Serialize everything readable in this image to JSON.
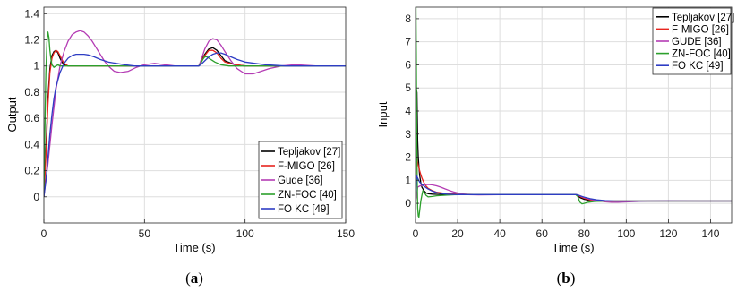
{
  "chart_data": [
    {
      "type": "line",
      "panel_label": "a",
      "xlabel": "Time (s)",
      "ylabel": "Output",
      "xlim": [
        0,
        150
      ],
      "ylim": [
        -0.2,
        1.45
      ],
      "xticks": [
        0,
        50,
        100,
        150
      ],
      "yticks": [
        0,
        0.2,
        0.4,
        0.6,
        0.8,
        1,
        1.2,
        1.4
      ],
      "grid": true,
      "legend_position": "bottom-right",
      "series": [
        {
          "name": "Tepljakov [27]",
          "color": "#000000",
          "x": [
            0,
            1,
            2,
            3,
            4,
            5,
            6,
            7,
            8,
            9,
            10,
            12,
            15,
            20,
            30,
            50,
            77,
            78,
            80,
            82,
            84,
            86,
            88,
            90,
            95,
            100,
            120,
            150
          ],
          "y": [
            0,
            0.35,
            0.75,
            0.98,
            1.08,
            1.11,
            1.12,
            1.1,
            1.06,
            1.03,
            1.01,
            1.0,
            1.0,
            1.0,
            1.0,
            1.0,
            1.0,
            1.03,
            1.09,
            1.13,
            1.14,
            1.12,
            1.08,
            1.04,
            1.01,
            1.0,
            1.0,
            1.0
          ]
        },
        {
          "name": "F-MIGO [26]",
          "color": "#e8251e",
          "x": [
            0,
            1,
            2,
            3,
            4,
            5,
            6,
            7,
            8,
            9,
            10,
            12,
            15,
            20,
            30,
            50,
            77,
            78,
            80,
            82,
            84,
            86,
            88,
            90,
            95,
            100,
            120,
            150
          ],
          "y": [
            0,
            0.3,
            0.7,
            0.95,
            1.06,
            1.1,
            1.12,
            1.11,
            1.08,
            1.05,
            1.02,
            1.0,
            1.0,
            1.0,
            1.0,
            1.0,
            1.0,
            1.03,
            1.08,
            1.12,
            1.12,
            1.1,
            1.06,
            1.03,
            1.01,
            1.0,
            1.0,
            1.0
          ]
        },
        {
          "name": "Gude [36]",
          "color": "#b43cb4",
          "x": [
            0,
            2,
            4,
            6,
            8,
            10,
            12,
            14,
            16,
            18,
            20,
            22,
            24,
            26,
            28,
            30,
            32,
            35,
            38,
            42,
            46,
            50,
            55,
            60,
            65,
            70,
            77,
            78,
            80,
            82,
            84,
            86,
            88,
            90,
            93,
            96,
            100,
            104,
            108,
            112,
            118,
            125,
            135,
            150
          ],
          "y": [
            0,
            0.25,
            0.55,
            0.82,
            1.0,
            1.11,
            1.19,
            1.24,
            1.26,
            1.27,
            1.26,
            1.23,
            1.19,
            1.14,
            1.09,
            1.04,
            1.0,
            0.96,
            0.95,
            0.96,
            0.99,
            1.01,
            1.02,
            1.01,
            1.0,
            1.0,
            1.0,
            1.04,
            1.13,
            1.19,
            1.21,
            1.2,
            1.16,
            1.11,
            1.04,
            0.98,
            0.94,
            0.94,
            0.96,
            0.98,
            1.0,
            1.01,
            1.0,
            1.0
          ]
        },
        {
          "name": "ZN-FOC [40]",
          "color": "#2ca02c",
          "x": [
            0,
            0.5,
            1,
            1.5,
            2,
            2.5,
            3,
            3.5,
            4,
            5,
            6,
            7,
            8,
            10,
            15,
            20,
            30,
            50,
            77,
            78,
            79,
            80,
            81,
            83,
            85,
            88,
            92,
            100,
            120,
            150
          ],
          "y": [
            0,
            0.5,
            0.95,
            1.18,
            1.26,
            1.22,
            1.12,
            1.05,
            1.01,
            0.99,
            1.0,
            1.01,
            1.0,
            1.0,
            1.0,
            1.0,
            1.0,
            1.0,
            1.0,
            1.02,
            1.05,
            1.07,
            1.07,
            1.05,
            1.03,
            1.01,
            1.0,
            1.0,
            1.0,
            1.0
          ]
        },
        {
          "name": "FO KC [49]",
          "color": "#2e3dc4",
          "x": [
            0,
            1,
            2,
            3,
            4,
            5,
            6,
            8,
            10,
            12,
            14,
            16,
            18,
            20,
            22,
            25,
            28,
            32,
            36,
            40,
            45,
            50,
            55,
            60,
            65,
            70,
            77,
            78,
            80,
            82,
            84,
            86,
            88,
            90,
            93,
            96,
            100,
            105,
            110,
            120,
            135,
            150
          ],
          "y": [
            0,
            0.12,
            0.3,
            0.48,
            0.63,
            0.75,
            0.84,
            0.95,
            1.02,
            1.06,
            1.08,
            1.09,
            1.09,
            1.09,
            1.085,
            1.07,
            1.05,
            1.03,
            1.02,
            1.01,
            1.0,
            1.0,
            1.0,
            1.0,
            1.0,
            1.0,
            1.0,
            1.01,
            1.04,
            1.07,
            1.09,
            1.1,
            1.1,
            1.09,
            1.07,
            1.05,
            1.03,
            1.02,
            1.01,
            1.0,
            1.0,
            1.0
          ]
        }
      ]
    },
    {
      "type": "line",
      "panel_label": "b",
      "xlabel": "Time (s)",
      "ylabel": "Input",
      "xlim": [
        0,
        150
      ],
      "ylim": [
        -0.85,
        8.5
      ],
      "xticks": [
        0,
        20,
        40,
        60,
        80,
        100,
        120,
        140
      ],
      "yticks": [
        0,
        1,
        2,
        3,
        4,
        5,
        6,
        7,
        8
      ],
      "grid": true,
      "legend_position": "top-right",
      "series": [
        {
          "name": "Tepljakov [27]",
          "color": "#000000",
          "x": [
            0,
            0.3,
            0.7,
            1,
            1.3,
            1.6,
            2,
            2.5,
            3,
            4,
            5,
            6,
            8,
            10,
            15,
            20,
            30,
            50,
            76,
            77,
            78,
            80,
            83,
            86,
            90,
            95,
            100,
            110,
            130,
            150
          ],
          "y": [
            0,
            5,
            4.8,
            2.7,
            2.0,
            1.6,
            1.2,
            0.9,
            0.7,
            0.55,
            0.45,
            0.42,
            0.4,
            0.39,
            0.38,
            0.38,
            0.38,
            0.38,
            0.38,
            0.33,
            0.25,
            0.18,
            0.12,
            0.1,
            0.09,
            0.1,
            0.1,
            0.1,
            0.1,
            0.1
          ]
        },
        {
          "name": "F-MIGO [26]",
          "color": "#e8251e",
          "x": [
            0,
            0.4,
            0.8,
            1.2,
            1.6,
            2,
            2.5,
            3,
            4,
            5,
            6,
            8,
            10,
            15,
            20,
            30,
            50,
            76,
            77,
            78,
            80,
            83,
            86,
            90,
            95,
            100,
            110,
            130,
            150
          ],
          "y": [
            0,
            2.0,
            1.85,
            1.7,
            1.55,
            1.4,
            1.25,
            1.1,
            0.9,
            0.75,
            0.65,
            0.55,
            0.48,
            0.42,
            0.4,
            0.38,
            0.38,
            0.38,
            0.36,
            0.3,
            0.22,
            0.15,
            0.11,
            0.1,
            0.1,
            0.1,
            0.1,
            0.1,
            0.1
          ]
        },
        {
          "name": "GUDE [36]",
          "color": "#b43cb4",
          "x": [
            0,
            1,
            2,
            3,
            4,
            6,
            8,
            10,
            12,
            14,
            16,
            18,
            20,
            22,
            25,
            30,
            40,
            50,
            60,
            76,
            77,
            78,
            80,
            83,
            86,
            90,
            93,
            96,
            100,
            105,
            110,
            120,
            135,
            150
          ],
          "y": [
            0,
            0.7,
            0.75,
            0.78,
            0.8,
            0.82,
            0.8,
            0.76,
            0.7,
            0.63,
            0.56,
            0.5,
            0.45,
            0.41,
            0.38,
            0.37,
            0.38,
            0.38,
            0.38,
            0.38,
            0.37,
            0.33,
            0.25,
            0.18,
            0.12,
            0.07,
            0.05,
            0.05,
            0.06,
            0.08,
            0.1,
            0.11,
            0.1,
            0.1
          ]
        },
        {
          "name": "ZN-FOC [40]",
          "color": "#2ca02c",
          "x": [
            0,
            0.2,
            0.4,
            0.6,
            0.8,
            1,
            1.3,
            1.6,
            2,
            2.5,
            3,
            3.5,
            4,
            5,
            6,
            8,
            10,
            15,
            20,
            30,
            50,
            76,
            77,
            78,
            79,
            80,
            82,
            85,
            90,
            100,
            120,
            150
          ],
          "y": [
            0,
            8.5,
            6.5,
            3.0,
            1.0,
            -0.2,
            -0.55,
            -0.6,
            -0.3,
            0.1,
            0.35,
            0.55,
            0.5,
            0.35,
            0.28,
            0.3,
            0.33,
            0.36,
            0.38,
            0.38,
            0.38,
            0.38,
            0.3,
            0.05,
            -0.02,
            0.0,
            0.05,
            0.08,
            0.1,
            0.1,
            0.1,
            0.1
          ]
        },
        {
          "name": "FO KC [49]",
          "color": "#2e3dc4",
          "x": [
            0,
            0.5,
            1,
            1.5,
            2,
            3,
            4,
            5,
            6,
            8,
            10,
            12,
            15,
            20,
            30,
            50,
            76,
            77,
            78,
            80,
            83,
            86,
            90,
            95,
            100,
            110,
            130,
            150
          ],
          "y": [
            0,
            1.2,
            1.1,
            1.0,
            0.92,
            0.82,
            0.75,
            0.68,
            0.62,
            0.53,
            0.47,
            0.43,
            0.4,
            0.38,
            0.38,
            0.38,
            0.38,
            0.37,
            0.33,
            0.27,
            0.2,
            0.15,
            0.12,
            0.1,
            0.1,
            0.1,
            0.1,
            0.1
          ]
        }
      ]
    }
  ]
}
